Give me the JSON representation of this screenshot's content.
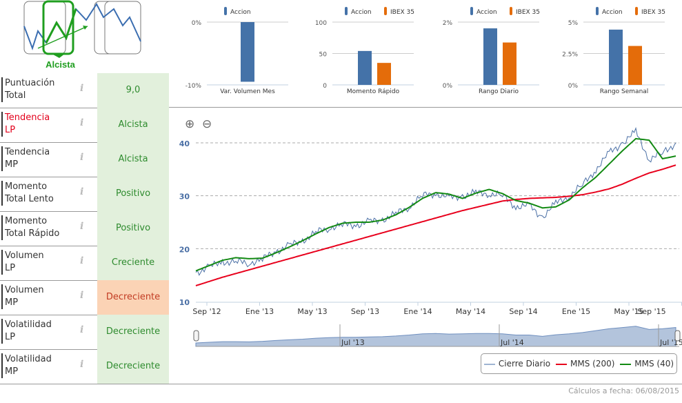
{
  "signal": {
    "label": "Alcista",
    "color": "#1f9e1f"
  },
  "rows": [
    {
      "label1": "Puntuación",
      "label2": "Total",
      "value": "9,0",
      "state": "pos"
    },
    {
      "label1": "Tendencia",
      "label2": "LP",
      "value": "Alcista",
      "state": "pos",
      "highlight": true
    },
    {
      "label1": "Tendencia",
      "label2": "MP",
      "value": "Alcista",
      "state": "pos"
    },
    {
      "label1": "Momento",
      "label2": "Total Lento",
      "value": "Positivo",
      "state": "pos"
    },
    {
      "label1": "Momento",
      "label2": "Total Rápido",
      "value": "Positivo",
      "state": "pos"
    },
    {
      "label1": "Volumen",
      "label2": "LP",
      "value": "Creciente",
      "state": "pos"
    },
    {
      "label1": "Volumen",
      "label2": "MP",
      "value": "Decreciente",
      "state": "neg"
    },
    {
      "label1": "Volatilidad",
      "label2": "LP",
      "value": "Decreciente",
      "state": "pos"
    },
    {
      "label1": "Volatilidad",
      "label2": "MP",
      "value": "Decreciente",
      "state": "pos"
    }
  ],
  "colors": {
    "accion": "#4472a8",
    "ibex": "#e46c0a",
    "close": "#4a6fa5",
    "mms200": "#e8001c",
    "mms40": "#138a13"
  },
  "chart_data": [
    {
      "type": "bar",
      "title": "Var. Volumen Mes",
      "legend": [
        "Accion"
      ],
      "yticks": [
        "0%",
        "-10%"
      ],
      "ylim": [
        -10,
        0
      ],
      "values": [
        -9.5
      ]
    },
    {
      "type": "bar",
      "title": "Momento Rápido",
      "legend": [
        "Accion",
        "IBEX 35"
      ],
      "yticks": [
        "100",
        "50",
        "0"
      ],
      "ylim": [
        0,
        100
      ],
      "values": [
        54,
        35
      ]
    },
    {
      "type": "bar",
      "title": "Rango Diario",
      "legend": [
        "Accion",
        "IBEX 35"
      ],
      "yticks": [
        "2%",
        "0%"
      ],
      "ylim": [
        0,
        2
      ],
      "values": [
        1.8,
        1.35
      ]
    },
    {
      "type": "bar",
      "title": "Rango Semanal",
      "legend": [
        "Accion",
        "IBEX 35"
      ],
      "yticks": [
        "5%",
        "2.5%",
        "0%"
      ],
      "ylim": [
        0,
        5
      ],
      "values": [
        4.4,
        3.1
      ]
    },
    {
      "type": "line",
      "ylim": [
        10,
        40
      ],
      "yticks": [
        "10",
        "20",
        "30",
        "40"
      ],
      "xticks": [
        "Sep '12",
        "Ene '13",
        "May '13",
        "Sep '13",
        "Ene '14",
        "May '14",
        "Sep '14",
        "Ene '15",
        "May '15",
        "Sep '15"
      ],
      "x": [
        "Ago 12",
        "Sep 12",
        "Oct 12",
        "Nov 12",
        "Dic 12",
        "Ene 13",
        "Feb 13",
        "Mar 13",
        "Abr 13",
        "May 13",
        "Jun 13",
        "Jul 13",
        "Ago 13",
        "Sep 13",
        "Oct 13",
        "Nov 13",
        "Dic 13",
        "Ene 14",
        "Feb 14",
        "Mar 14",
        "Abr 14",
        "May 14",
        "Jun 14",
        "Jul 14",
        "Ago 14",
        "Sep 14",
        "Oct 14",
        "Nov 14",
        "Dic 14",
        "Ene 15",
        "Feb 15",
        "Mar 15",
        "Abr 15",
        "May 15",
        "Jun 15",
        "Jul 15",
        "Ago 15"
      ],
      "series": [
        {
          "name": "Cierre Diario",
          "values": [
            15.5,
            16.5,
            17.5,
            17.5,
            17.3,
            18,
            19.5,
            20.5,
            21.5,
            23,
            24,
            24.5,
            24.5,
            25,
            25.5,
            26.5,
            28,
            30,
            30.5,
            29.5,
            30,
            30.5,
            30.5,
            30,
            28,
            28,
            26,
            28.5,
            30,
            32,
            35,
            38,
            40,
            42,
            37,
            38,
            40
          ]
        },
        {
          "name": "MMS (200)",
          "values": [
            13,
            13.8,
            14.6,
            15.3,
            16,
            16.7,
            17.4,
            18.1,
            18.8,
            19.5,
            20.2,
            20.9,
            21.6,
            22.3,
            23,
            23.7,
            24.4,
            25.1,
            25.8,
            26.5,
            27.2,
            27.8,
            28.4,
            29,
            29.3,
            29.5,
            29.6,
            29.7,
            29.9,
            30.2,
            30.7,
            31.3,
            32.2,
            33.3,
            34.3,
            35,
            35.8
          ]
        },
        {
          "name": "MMS (40)",
          "values": [
            15.8,
            16.8,
            17.8,
            18.3,
            18.1,
            18.2,
            19.2,
            20.3,
            21.5,
            22.8,
            24,
            24.8,
            25,
            25,
            25.4,
            26.4,
            27.8,
            29.5,
            30.6,
            30.3,
            29.5,
            30.5,
            31.2,
            30.4,
            29.1,
            28.6,
            27.7,
            27.9,
            29.2,
            31.5,
            33.5,
            36,
            38.5,
            40.8,
            40.5,
            37,
            37.5
          ]
        }
      ],
      "navigator_labels": [
        "Jul '13",
        "Jul '14",
        "Jul '15"
      ],
      "legend_position": "bottom-right"
    }
  ],
  "legend": {
    "close": "Cierre Diario",
    "mms200": "MMS (200)",
    "mms40": "MMS (40)"
  },
  "footer": "Cálculos a fecha: 06/08/2015"
}
